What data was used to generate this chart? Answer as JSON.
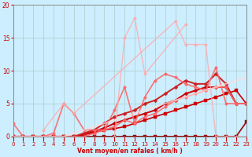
{
  "background_color": "#cceeff",
  "grid_color": "#aacccc",
  "xlabel": "Vent moyen/en rafales ( km/h )",
  "xlim": [
    0,
    23
  ],
  "ylim": [
    0,
    20
  ],
  "yticks": [
    0,
    5,
    10,
    15,
    20
  ],
  "xticks": [
    0,
    1,
    2,
    3,
    4,
    5,
    6,
    7,
    8,
    9,
    10,
    11,
    12,
    13,
    14,
    15,
    16,
    17,
    18,
    19,
    20,
    21,
    22,
    23
  ],
  "lines": [
    {
      "x": [
        0,
        1,
        2,
        3,
        4,
        5,
        6,
        7,
        8,
        9,
        10,
        11,
        12,
        13,
        14,
        15,
        16,
        17,
        18,
        19,
        20,
        21,
        22,
        23
      ],
      "y": [
        0,
        0,
        0,
        0,
        0,
        0,
        0,
        0,
        0,
        0,
        0,
        0,
        0,
        0,
        0,
        0,
        0,
        0,
        0,
        0,
        0,
        0,
        0,
        2.2
      ],
      "color": "#990000",
      "alpha": 1.0,
      "lw": 1.2,
      "marker": "s",
      "ms": 2.5
    },
    {
      "x": [
        0,
        1,
        2,
        3,
        4,
        5,
        6,
        7,
        8,
        9,
        10,
        11,
        12,
        13,
        14,
        15,
        16,
        17,
        18,
        19,
        20,
        21,
        22,
        23
      ],
      "y": [
        0,
        0,
        0,
        0,
        0,
        0,
        0,
        0.3,
        0.6,
        1,
        1.2,
        1.5,
        2,
        2.5,
        3,
        3.5,
        4,
        4.5,
        5,
        5.5,
        6,
        6.5,
        7,
        5
      ],
      "color": "#cc0000",
      "alpha": 1.0,
      "lw": 1.2,
      "marker": "s",
      "ms": 2.5
    },
    {
      "x": [
        0,
        1,
        2,
        3,
        4,
        5,
        6,
        7,
        8,
        9,
        10,
        11,
        12,
        13,
        14,
        15,
        16,
        17,
        18,
        19,
        20,
        21,
        22,
        23
      ],
      "y": [
        0,
        0,
        0,
        0,
        0,
        0,
        0,
        0.3,
        0.8,
        1.3,
        2,
        2.5,
        3,
        3.5,
        4,
        5,
        5.5,
        6.5,
        7,
        7.5,
        7.5,
        7.5,
        5,
        5
      ],
      "color": "#cc0000",
      "alpha": 1.0,
      "lw": 1.4,
      "marker": "D",
      "ms": 2.5
    },
    {
      "x": [
        0,
        1,
        2,
        3,
        4,
        5,
        6,
        7,
        8,
        9,
        10,
        11,
        12,
        13,
        14,
        15,
        16,
        17,
        18,
        19,
        20,
        21,
        22,
        23
      ],
      "y": [
        0,
        0,
        0,
        0,
        0,
        0,
        0,
        0.5,
        1,
        2,
        3,
        3.5,
        4,
        5,
        5.5,
        6.5,
        7.5,
        8.5,
        8,
        8,
        9.5,
        8,
        5,
        5
      ],
      "color": "#cc2222",
      "alpha": 1.0,
      "lw": 1.4,
      "marker": "D",
      "ms": 2.5
    },
    {
      "x": [
        0,
        1,
        2,
        3,
        4,
        5,
        6,
        7,
        8,
        9,
        10,
        11,
        12,
        13,
        14,
        15,
        16,
        17,
        18,
        19,
        20,
        21,
        22,
        23
      ],
      "y": [
        2,
        0,
        0,
        0,
        0,
        0,
        0,
        0,
        0.5,
        1,
        1.5,
        2.5,
        2,
        3,
        3.5,
        4.5,
        5.5,
        6,
        6.5,
        7,
        7.5,
        7.5,
        5,
        5
      ],
      "color": "#ff6666",
      "alpha": 0.9,
      "lw": 1.2,
      "marker": "o",
      "ms": 2.5
    },
    {
      "x": [
        0,
        1,
        2,
        3,
        4,
        5,
        6,
        7,
        8,
        9,
        10,
        11,
        12,
        13,
        14,
        15,
        16,
        17,
        18,
        19,
        20,
        21,
        22,
        23
      ],
      "y": [
        0,
        0,
        0,
        0,
        0.5,
        5,
        3.5,
        1,
        1,
        1,
        4,
        7.5,
        2,
        6,
        8.5,
        9.5,
        9,
        8,
        7.5,
        7,
        10.5,
        5,
        5,
        5
      ],
      "color": "#ff6666",
      "alpha": 0.9,
      "lw": 1.2,
      "marker": "o",
      "ms": 2.5
    },
    {
      "x": [
        10,
        11,
        12,
        13,
        17
      ],
      "y": [
        0,
        15,
        18,
        9.5,
        17
      ],
      "color": "#ffaaaa",
      "alpha": 0.8,
      "lw": 1.0,
      "marker": "o",
      "ms": 2.5
    },
    {
      "x": [
        3,
        5,
        6,
        16,
        17,
        18,
        19,
        20,
        21,
        22,
        23
      ],
      "y": [
        1,
        5,
        3.5,
        17.5,
        14,
        14,
        14,
        0,
        0,
        0,
        0
      ],
      "color": "#ffaaaa",
      "alpha": 0.8,
      "lw": 1.0,
      "marker": "o",
      "ms": 2.5
    },
    {
      "x": [
        0,
        1,
        2,
        3,
        4,
        5,
        6,
        7,
        8,
        9,
        10,
        11,
        12,
        13,
        14,
        15,
        16,
        17,
        18,
        19,
        20,
        21,
        22,
        23
      ],
      "y": [
        0,
        0,
        0,
        0,
        0,
        0,
        0.5,
        1,
        1.5,
        2,
        2.5,
        3,
        3.5,
        4,
        4.5,
        5,
        5.5,
        6,
        6.5,
        7,
        7.5,
        8,
        8.5,
        9
      ],
      "color": "#ffdddd",
      "alpha": 0.7,
      "lw": 1.5,
      "marker": null,
      "ms": 0
    }
  ]
}
